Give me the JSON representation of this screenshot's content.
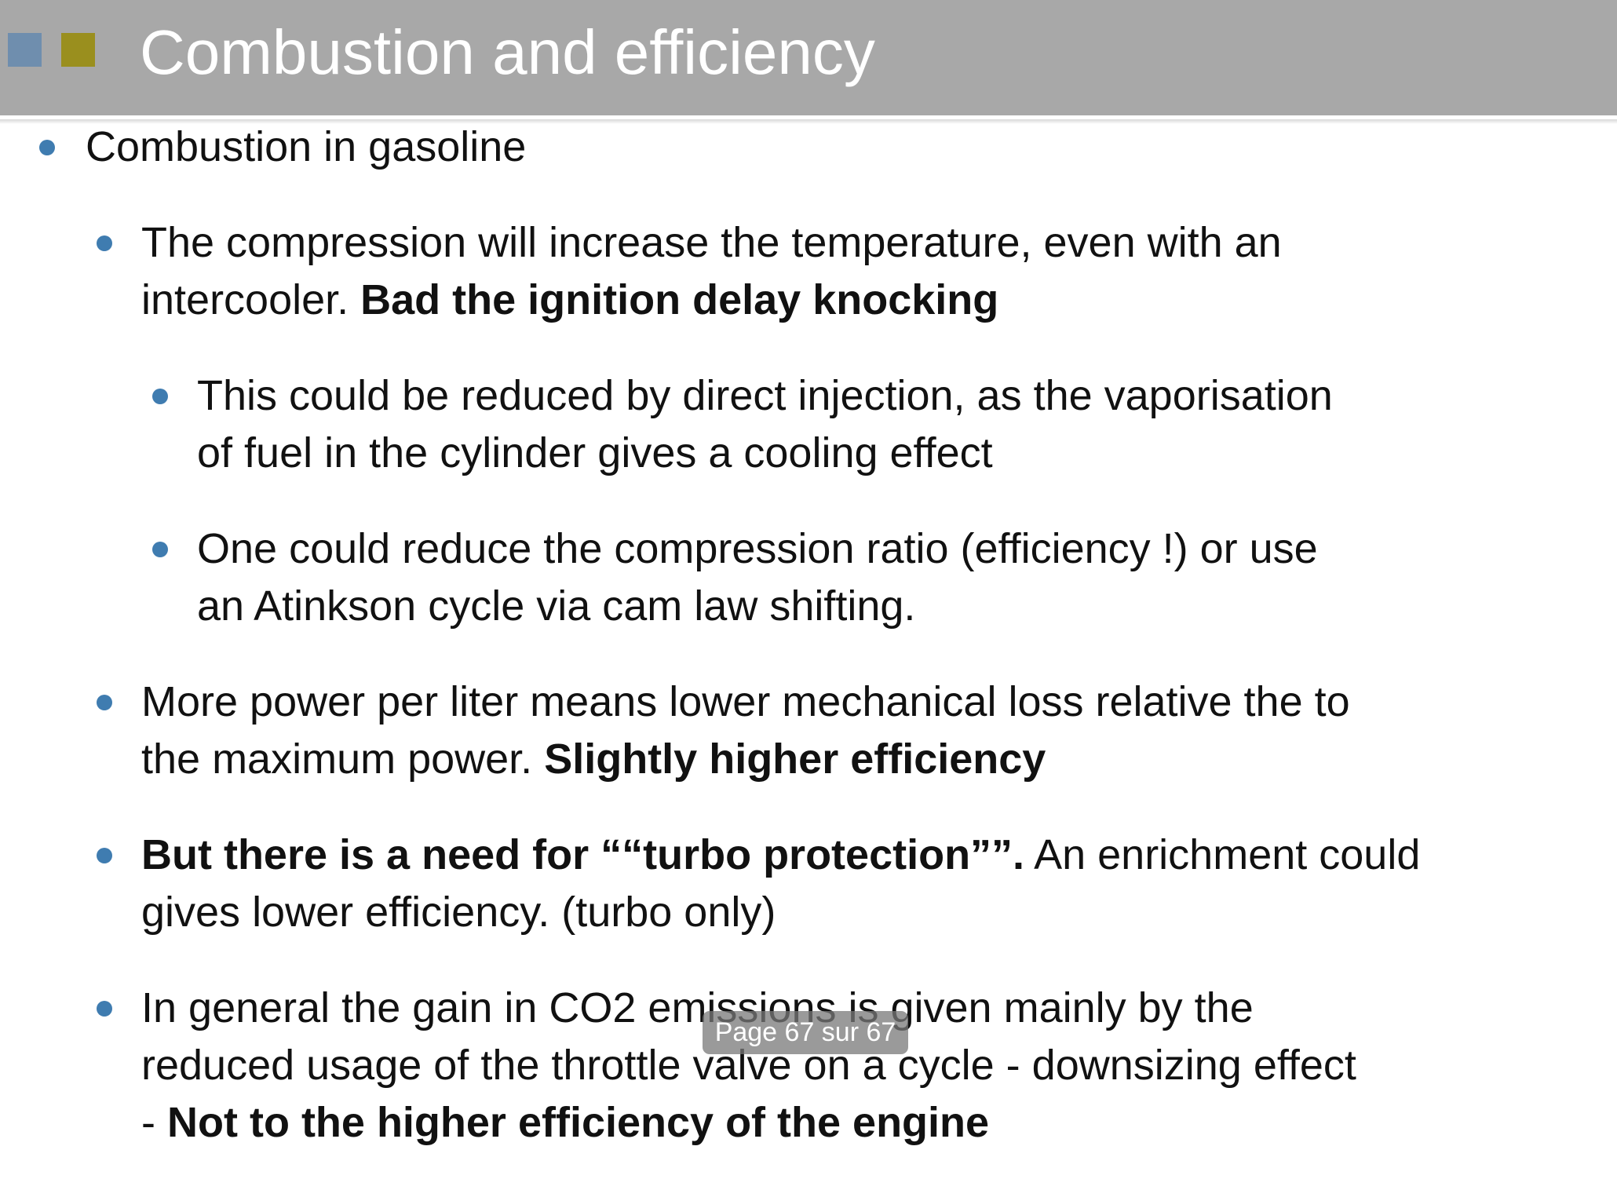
{
  "header": {
    "title": "Combustion and efficiency"
  },
  "items": [
    {
      "level": 1,
      "lines": [
        [
          {
            "text": "Combustion in gasoline"
          }
        ]
      ]
    },
    {
      "level": 2,
      "lines": [
        [
          {
            "text": "The compression will increase the temperature, even with an"
          }
        ],
        [
          {
            "text": "intercooler. "
          },
          {
            "text": "Bad the ignition delay knocking",
            "bold": true
          }
        ]
      ]
    },
    {
      "level": 3,
      "lines": [
        [
          {
            "text": "This could be reduced by direct injection, as the vaporisation"
          }
        ],
        [
          {
            "text": "of fuel in the cylinder gives a cooling effect"
          }
        ]
      ]
    },
    {
      "level": 3,
      "lines": [
        [
          {
            "text": "One could reduce the compression ratio (efficiency !) or use"
          }
        ],
        [
          {
            "text": "an Atinkson cycle via cam law shifting."
          }
        ]
      ]
    },
    {
      "level": 2,
      "lines": [
        [
          {
            "text": "More power per liter means lower mechanical loss relative the to"
          }
        ],
        [
          {
            "text": "the maximum power. "
          },
          {
            "text": "Slightly higher efficiency",
            "bold": true
          }
        ]
      ]
    },
    {
      "level": 2,
      "lines": [
        [
          {
            "text": "But there is a need for ““turbo protection””.",
            "bold": true
          },
          {
            "text": " An enrichment could"
          }
        ],
        [
          {
            "text": "gives lower efficiency. (turbo only)"
          }
        ]
      ]
    },
    {
      "level": 2,
      "lines": [
        [
          {
            "text": "In general the gain in CO2 emissions is given mainly by the"
          }
        ],
        [
          {
            "text": "reduced usage of the throttle valve on a cycle - downsizing effect"
          }
        ],
        [
          {
            "text": "- "
          },
          {
            "text": "Not to the higher efficiency of the engine",
            "bold": true
          }
        ]
      ]
    }
  ],
  "overlay": {
    "page_indicator": "Page 67 sur 67"
  }
}
